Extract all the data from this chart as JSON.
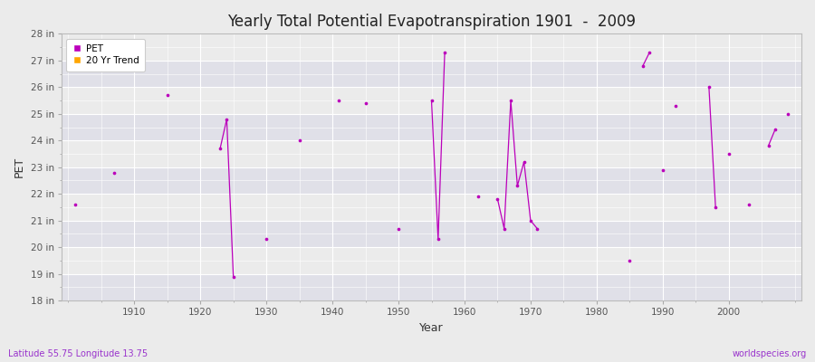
{
  "title": "Yearly Total Potential Evapotranspiration 1901  -  2009",
  "xlabel": "Year",
  "ylabel": "PET",
  "subtitle_left": "Latitude 55.75 Longitude 13.75",
  "subtitle_right": "worldspecies.org",
  "ylim": [
    18,
    28
  ],
  "yticks": [
    18,
    19,
    20,
    21,
    22,
    23,
    24,
    25,
    26,
    27,
    28
  ],
  "ytick_labels": [
    "18 in",
    "19 in",
    "20 in",
    "21 in",
    "22 in",
    "23 in",
    "24 in",
    "25 in",
    "26 in",
    "27 in",
    "28 in"
  ],
  "xlim_min": 1899,
  "xlim_max": 2011,
  "xticks": [
    1910,
    1920,
    1930,
    1940,
    1950,
    1960,
    1970,
    1980,
    1990,
    2000
  ],
  "pet_color": "#BB00BB",
  "trend_color": "#FFA500",
  "bg_color": "#EBEBEB",
  "grid_color": "#FFFFFF",
  "years": [
    1901,
    1902,
    1903,
    1904,
    1905,
    1906,
    1907,
    1908,
    1909,
    1910,
    1911,
    1912,
    1913,
    1914,
    1915,
    1916,
    1917,
    1918,
    1919,
    1920,
    1921,
    1922,
    1923,
    1924,
    1925,
    1926,
    1927,
    1928,
    1929,
    1930,
    1931,
    1932,
    1933,
    1934,
    1935,
    1936,
    1937,
    1938,
    1939,
    1940,
    1941,
    1942,
    1943,
    1944,
    1945,
    1946,
    1947,
    1948,
    1949,
    1950,
    1951,
    1952,
    1953,
    1954,
    1955,
    1956,
    1957,
    1958,
    1959,
    1960,
    1961,
    1962,
    1963,
    1964,
    1965,
    1966,
    1967,
    1968,
    1969,
    1970,
    1971,
    1972,
    1973,
    1974,
    1975,
    1976,
    1977,
    1978,
    1979,
    1980,
    1981,
    1982,
    1983,
    1984,
    1985,
    1986,
    1987,
    1988,
    1989,
    1990,
    1991,
    1992,
    1993,
    1994,
    1995,
    1996,
    1997,
    1998,
    1999,
    2000,
    2001,
    2002,
    2003,
    2004,
    2005,
    2006,
    2007,
    2008,
    2009
  ],
  "pet_values": [
    21.6,
    null,
    null,
    null,
    null,
    null,
    22.8,
    null,
    null,
    null,
    null,
    null,
    null,
    null,
    25.7,
    null,
    null,
    null,
    null,
    null,
    null,
    null,
    23.7,
    24.8,
    18.9,
    null,
    null,
    null,
    null,
    20.3,
    null,
    null,
    null,
    null,
    24.0,
    null,
    null,
    null,
    null,
    null,
    25.5,
    null,
    null,
    null,
    25.4,
    null,
    null,
    null,
    null,
    20.7,
    null,
    null,
    null,
    null,
    25.5,
    20.3,
    27.3,
    null,
    null,
    null,
    null,
    21.9,
    null,
    null,
    21.8,
    20.7,
    25.5,
    22.3,
    23.2,
    21.0,
    20.7,
    null,
    null,
    null,
    null,
    null,
    null,
    null,
    null,
    null,
    null,
    null,
    null,
    null,
    19.5,
    null,
    26.8,
    27.3,
    null,
    22.9,
    null,
    25.3,
    null,
    null,
    null,
    null,
    26.0,
    21.5,
    null,
    23.5,
    null,
    null,
    21.6,
    null,
    null,
    23.8,
    24.4,
    null,
    25.0
  ]
}
